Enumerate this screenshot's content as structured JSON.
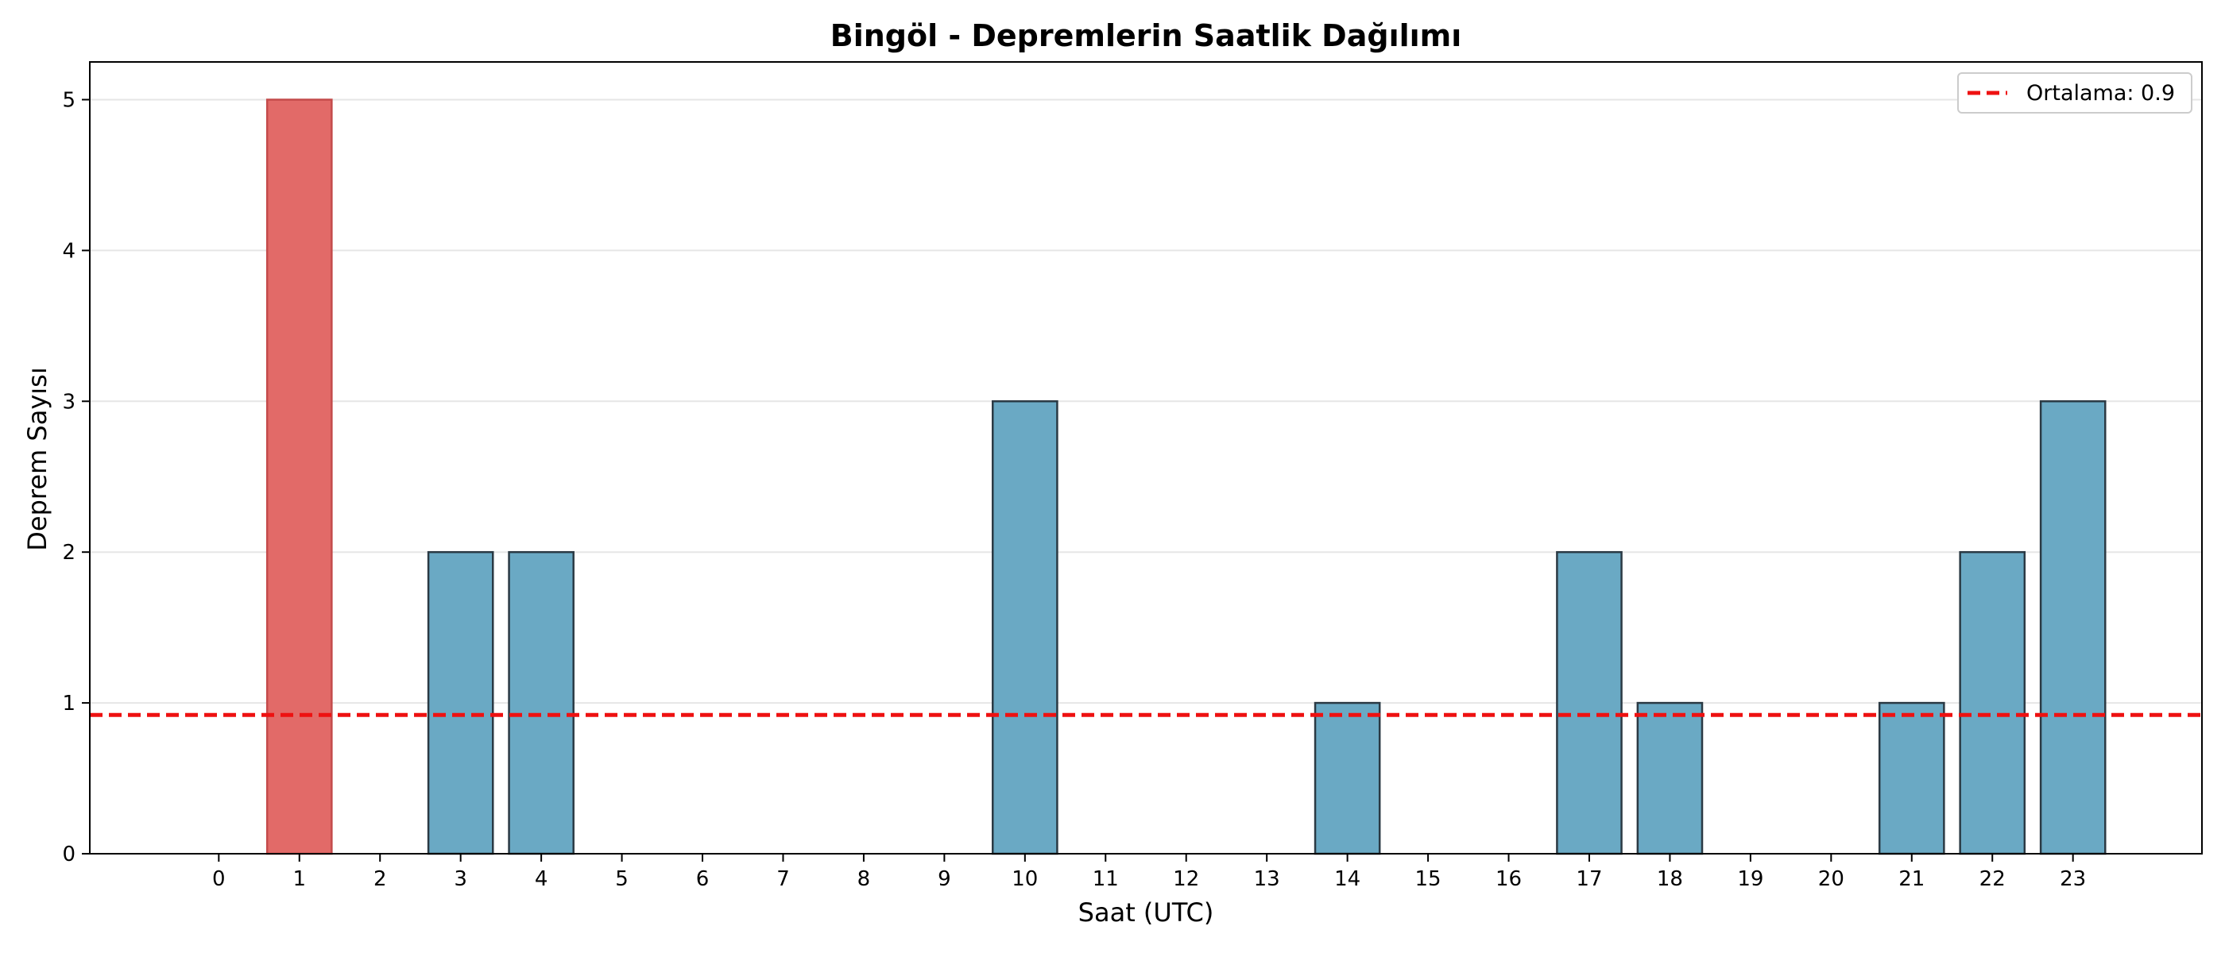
{
  "chart_data": {
    "type": "bar",
    "title": "Bingöl - Depremlerin Saatlik Dağılımı",
    "xlabel": "Saat (UTC)",
    "ylabel": "Deprem Sayısı",
    "categories": [
      "0",
      "1",
      "2",
      "3",
      "4",
      "5",
      "6",
      "7",
      "8",
      "9",
      "10",
      "11",
      "12",
      "13",
      "14",
      "15",
      "16",
      "17",
      "18",
      "19",
      "20",
      "21",
      "22",
      "23"
    ],
    "values": [
      0,
      5,
      0,
      2,
      2,
      0,
      0,
      0,
      0,
      0,
      3,
      0,
      0,
      0,
      1,
      0,
      0,
      2,
      1,
      0,
      0,
      1,
      2,
      3
    ],
    "ylim": [
      0,
      5.25
    ],
    "yticks": [
      "0",
      "1",
      "2",
      "3",
      "4",
      "5"
    ],
    "grid": "horizontal",
    "highlight_index": 1,
    "colors": {
      "bar": "#6aa9c4",
      "bar_edge": "#2b3a44",
      "highlight": "#e26a68",
      "highlight_edge": "#c44b4b",
      "mean_line": "#ee1111",
      "grid": "#e6e6e6"
    },
    "mean_line": {
      "value": 0.92,
      "label": "Ortalama: 0.9",
      "style": "dashed"
    },
    "legend_position": "top-right"
  }
}
